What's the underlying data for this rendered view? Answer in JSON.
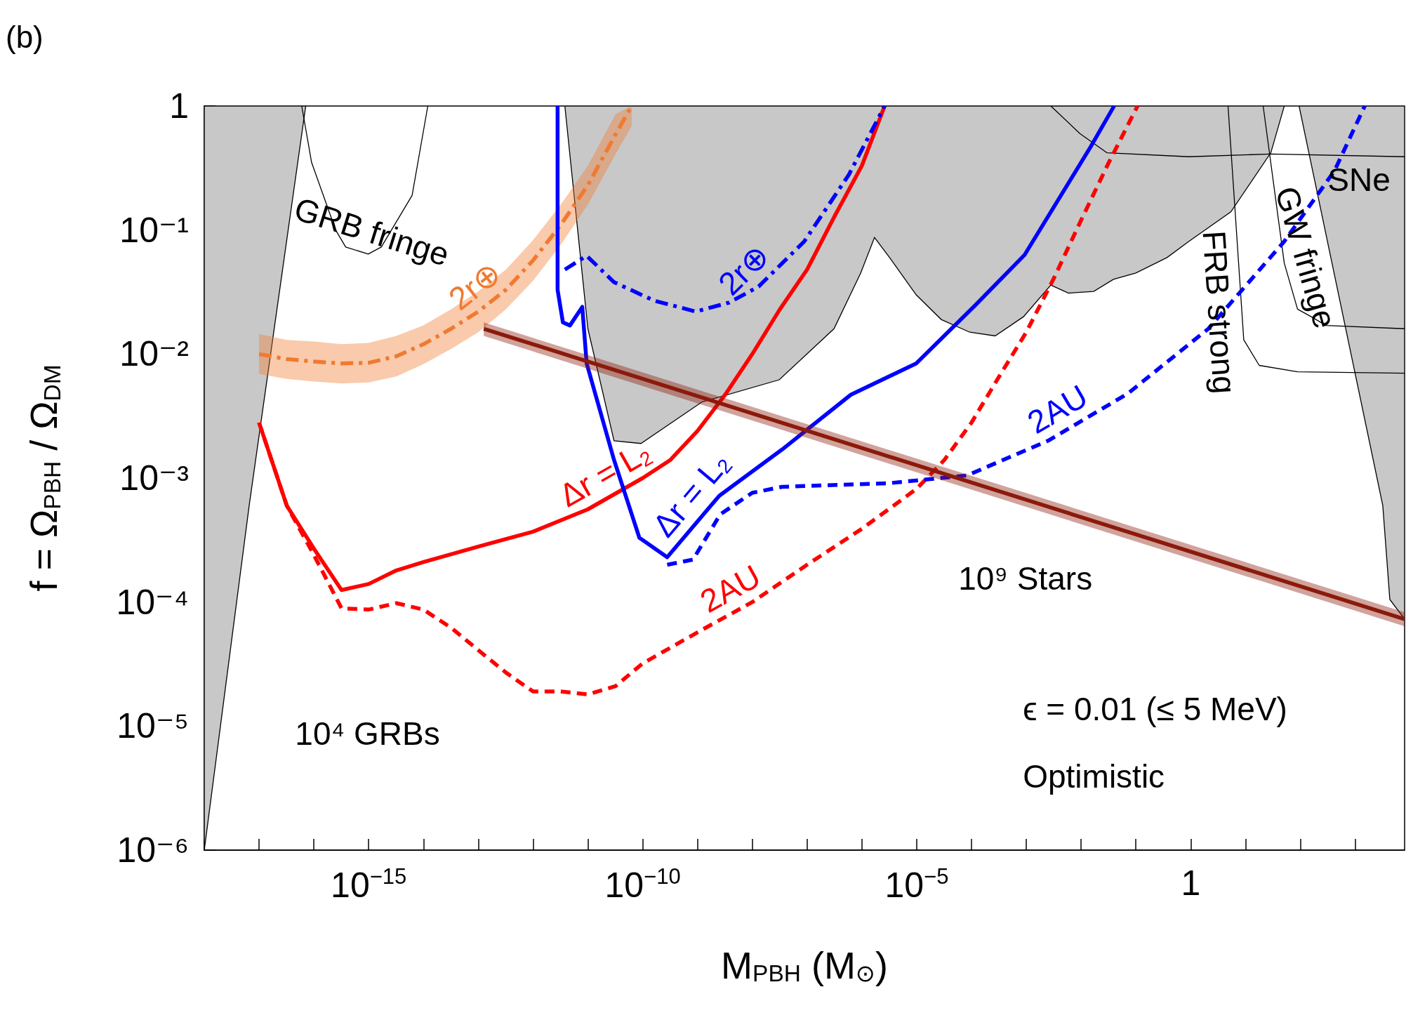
{
  "chart_data": {
    "type": "line",
    "xlabel": "M$_{PBH}$ (M$_{⊙}$)",
    "ylabel": "f = Ω$_{PBH}$ / Ω$_{DM}$",
    "log": "xy",
    "grid": false,
    "legend": false,
    "xlim": [
      1e-18,
      8000
    ],
    "ylim": [
      1e-06,
      1
    ],
    "xticks": [
      {
        "value": 1e-18,
        "label": null
      },
      {
        "value": 1e-17,
        "label": null
      },
      {
        "value": 1e-16,
        "label": null
      },
      {
        "value": 1e-15,
        "label": "10$^{−15}$"
      },
      {
        "value": 1e-14,
        "label": null
      },
      {
        "value": 1e-13,
        "label": null
      },
      {
        "value": 1e-12,
        "label": null
      },
      {
        "value": 1e-11,
        "label": null
      },
      {
        "value": 1e-10,
        "label": "10$^{−10}$"
      },
      {
        "value": 1e-09,
        "label": null
      },
      {
        "value": 1e-08,
        "label": null
      },
      {
        "value": 1e-07,
        "label": null
      },
      {
        "value": 1e-06,
        "label": null
      },
      {
        "value": 1e-05,
        "label": "10$^{−5}$"
      },
      {
        "value": 0.0001,
        "label": null
      },
      {
        "value": 0.001,
        "label": null
      },
      {
        "value": 0.01,
        "label": null
      },
      {
        "value": 0.1,
        "label": null
      },
      1,
      {
        "value": 10,
        "label": null
      },
      {
        "value": 100,
        "label": null
      },
      {
        "value": 1000,
        "label": null
      }
    ],
    "yticks": [
      {
        "value": 1e-06,
        "label": "10⁻⁶"
      },
      {
        "value": 1e-05,
        "label": "10⁻⁵"
      },
      {
        "value": 0.0001,
        "label": "10⁻⁴"
      },
      {
        "value": 0.001,
        "label": "10⁻³"
      },
      {
        "value": 0.01,
        "label": "10⁻²"
      },
      {
        "value": 0.1,
        "label": "10⁻¹"
      },
      1
    ],
    "annotations": [
      "(b)",
      "10⁴ GRBs",
      "10⁹ Stars",
      "SNe",
      "ϵ = 0.01 (≤ 5 MeV)",
      "Optimistic"
    ],
    "series": [
      {
        "type": "area",
        "color": "#c8c8c8",
        "x": [
          1e-18,
          1e-18,
          6.6e-18,
          7.1e-17
        ],
        "values": [
          1,
          1e-06,
          0.0006,
          1
        ]
      },
      {
        "type": "area",
        "color": "#c8c8c8",
        "x": [
          3.8e-12,
          1e-11,
          3e-11,
          9.3e-11,
          1.2e-09,
          3.1e-08,
          3.1e-07,
          9.5e-07,
          1.7e-06,
          3.2e-06,
          9.8e-06,
          2.8e-05,
          9.3e-05,
          0.00027,
          0.00089,
          0.0028,
          0.0059,
          0.017,
          0.039,
          0.1,
          0.37,
          0.93,
          5.4,
          29,
          51
        ],
        "values": [
          1,
          0.016,
          0.002,
          0.0019,
          0.0041,
          0.0062,
          0.016,
          0.045,
          0.087,
          0.06,
          0.03,
          0.019,
          0.015,
          0.014,
          0.02,
          0.036,
          0.031,
          0.032,
          0.04,
          0.045,
          0.06,
          0.081,
          0.14,
          0.42,
          1
        ]
      },
      {
        "type": "area",
        "color": "#c8c8c8",
        "x": [
          95,
          3200,
          4300,
          8000,
          8000
        ],
        "values": [
          1,
          0.0006,
          0.000105,
          7.3e-05,
          1
        ]
      },
      {
        "color": "#000000",
        "x": [
          6e-17,
          9.1e-17,
          2.5e-16,
          3.8e-16,
          9.8e-16,
          1.7e-15,
          6.2e-15,
          1.2e-14
        ],
        "values": [
          1,
          0.35,
          0.1,
          0.073,
          0.064,
          0.073,
          0.19,
          1
        ],
        "name": "GRB fringe"
      },
      {
        "color": "#000000",
        "x": [
          0.0028,
          0.0095,
          0.0295,
          0.93,
          29,
          8000
        ],
        "values": [
          1,
          0.6,
          0.42,
          0.39,
          0.41,
          0.39
        ]
      },
      {
        "color": "#000000",
        "x": [
          4.8,
          9.3,
          17.8,
          89,
          8000
        ],
        "values": [
          1,
          0.013,
          0.0081,
          0.0072,
          0.007
        ],
        "name": "FRB strong"
      },
      {
        "color": "#000000",
        "x": [
          21,
          51,
          89,
          158,
          295,
          8000
        ],
        "values": [
          1,
          0.054,
          0.023,
          0.02,
          0.017,
          0.016
        ],
        "name": "GW fringe"
      },
      {
        "color": "#f07a30",
        "line_style": "dashdot",
        "name": "2r⊕",
        "x": [
          1e-17,
          3.2e-17,
          1e-16,
          3.2e-16,
          1e-15,
          3.2e-15,
          1e-14,
          3.2e-14,
          1e-13,
          3.2e-13,
          1e-12,
          3.2e-12,
          1e-11,
          3.2e-11,
          6.3e-11
        ],
        "values": [
          0.01,
          0.0091,
          0.0087,
          0.0084,
          0.0085,
          0.0096,
          0.012,
          0.016,
          0.022,
          0.033,
          0.057,
          0.11,
          0.23,
          0.59,
          1
        ],
        "lower": [
          0.0069,
          0.0063,
          0.006,
          0.0058,
          0.0059,
          0.0066,
          0.0083,
          0.011,
          0.015,
          0.023,
          0.039,
          0.076,
          0.16,
          0.41,
          0.69
        ],
        "upper": [
          0.0145,
          0.013,
          0.0126,
          0.012,
          0.0123,
          0.014,
          0.017,
          0.023,
          0.032,
          0.048,
          0.083,
          0.16,
          0.33,
          0.86,
          1
        ]
      },
      {
        "color": "#ff0000",
        "line_style": "solid",
        "name": "Δr = L$_{2}$",
        "x": [
          1e-17,
          3.2e-17,
          1e-16,
          3.2e-16,
          1e-15,
          3.2e-15,
          1e-14,
          1e-13,
          1e-12,
          1e-11,
          1e-10,
          3.2e-10,
          1e-09,
          3.2e-09,
          1e-08,
          3.2e-08,
          1e-07,
          3.2e-07,
          1e-06,
          2.6e-06
        ],
        "values": [
          0.0028,
          0.0006,
          0.00027,
          0.000125,
          0.00014,
          0.00018,
          0.00021,
          0.00028,
          0.00037,
          0.00056,
          0.001,
          0.0014,
          0.0024,
          0.0047,
          0.01,
          0.023,
          0.048,
          0.13,
          0.33,
          1
        ]
      },
      {
        "color": "#ff0000",
        "line_style": "dashed",
        "name": "2AU",
        "x": [
          1e-17,
          3.2e-17,
          1e-16,
          3.2e-16,
          1e-15,
          3.2e-15,
          1e-14,
          3.2e-14,
          1e-13,
          3.2e-13,
          1e-12,
          3.2e-12,
          1e-11,
          3.2e-11,
          1e-10,
          1e-09,
          1e-08,
          1e-07,
          1e-06,
          1e-05,
          3.2e-05,
          0.0001,
          0.00032,
          0.001,
          0.0032,
          0.01,
          0.032,
          0.107
        ],
        "values": [
          0.0028,
          0.0006,
          0.00024,
          8.9e-05,
          8.7e-05,
          9.8e-05,
          8.7e-05,
          6.2e-05,
          4.1e-05,
          2.7e-05,
          1.9e-05,
          1.9e-05,
          1.8e-05,
          2.1e-05,
          3.2e-05,
          5.7e-05,
          0.0001,
          0.0002,
          0.00039,
          0.00082,
          0.0014,
          0.0028,
          0.0066,
          0.015,
          0.041,
          0.12,
          0.35,
          1
        ]
      },
      {
        "color": "#0000ff",
        "line_style": "solid",
        "name": "Δr = L$_{2}$",
        "x": [
          2.8e-12,
          2.8e-12,
          3.5e-12,
          4.7e-12,
          7.9e-12,
          9.5e-12,
          3e-11,
          8.7e-11,
          2.8e-10,
          2.5e-09,
          3.5e-08,
          6.3e-07,
          9.8e-06,
          0.00012,
          0.00093,
          0.015,
          0.04
        ],
        "values": [
          1,
          0.033,
          0.018,
          0.017,
          0.024,
          0.0084,
          0.0014,
          0.00033,
          0.00023,
          0.00072,
          0.0017,
          0.0047,
          0.0084,
          0.025,
          0.063,
          0.47,
          1
        ]
      },
      {
        "color": "#0000ff",
        "line_style": "dashdot",
        "name": "2r⊕",
        "x": [
          3.8e-12,
          9.5e-12,
          3e-11,
          1.6e-10,
          9.3e-10,
          3.8e-09,
          1.3e-08,
          8.9e-08,
          5.8e-07,
          2.6e-06
        ],
        "values": [
          0.048,
          0.062,
          0.038,
          0.027,
          0.022,
          0.026,
          0.035,
          0.081,
          0.28,
          1
        ]
      },
      {
        "color": "#0000ff",
        "line_style": "dashed",
        "name": "2AU",
        "x": [
          2.8e-10,
          8.3e-10,
          2.6e-09,
          1e-08,
          3.5e-08,
          3.2e-06,
          8.3e-05,
          0.0025,
          0.071,
          2.1,
          51,
          420,
          1500
        ],
        "values": [
          0.0002,
          0.00022,
          0.00051,
          0.00076,
          0.00085,
          0.00091,
          0.00105,
          0.002,
          0.0048,
          0.016,
          0.081,
          0.3,
          1
        ]
      },
      {
        "color": "#8b1a0a",
        "line_style": "solid",
        "x": [
          1.26e-13,
          7900
        ],
        "values": [
          0.016,
          7.3e-05
        ],
        "lower": [
          0.014,
          6.4e-05
        ],
        "upper": [
          0.018,
          8.3e-05
        ]
      }
    ]
  }
}
